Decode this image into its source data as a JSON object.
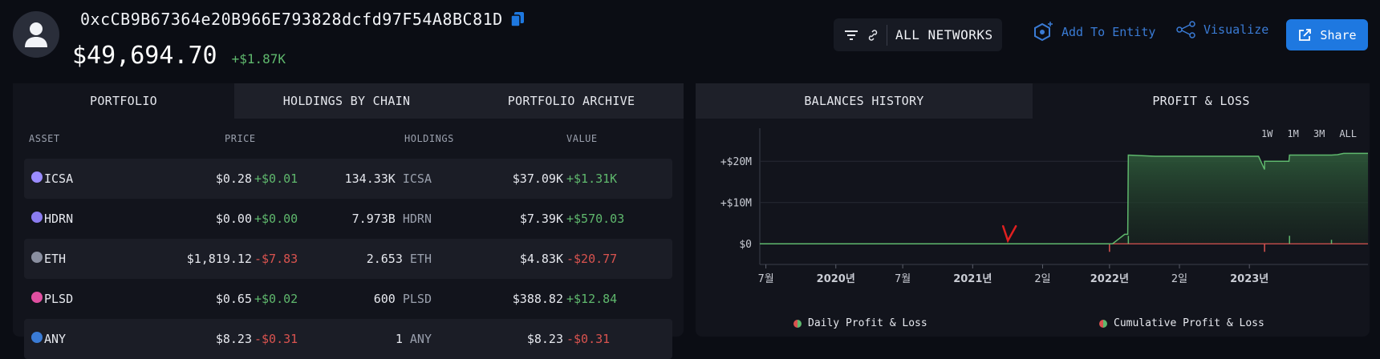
{
  "header": {
    "address": "0xcCB9B67364e20B966E793828dcfd97F54A8BC81D",
    "total_value": "$49,694.70",
    "total_delta": "+$1.87K",
    "network_label": "ALL NETWORKS",
    "add_entity_label": "Add To Entity",
    "visualize_label": "Visualize",
    "share_label": "Share"
  },
  "portfolio": {
    "tabs": [
      "PORTFOLIO",
      "HOLDINGS BY CHAIN",
      "PORTFOLIO ARCHIVE"
    ],
    "columns": [
      "ASSET",
      "PRICE",
      "HOLDINGS",
      "VALUE"
    ],
    "rows": [
      {
        "asset": "ICSA",
        "price": "$0.28",
        "price_delta": "+$0.01",
        "holdings": "134.33K",
        "unit": "ICSA",
        "value": "$37.09K",
        "value_delta": "+$1.31K",
        "price_sign": "pos",
        "value_sign": "pos",
        "color": "#9b8cff"
      },
      {
        "asset": "HDRN",
        "price": "$0.00",
        "price_delta": "+$0.00",
        "holdings": "7.973B",
        "unit": "HDRN",
        "value": "$7.39K",
        "value_delta": "+$570.03",
        "price_sign": "pos",
        "value_sign": "pos",
        "color": "#8b7cf0"
      },
      {
        "asset": "ETH",
        "price": "$1,819.12",
        "price_delta": "-$7.83",
        "holdings": "2.653",
        "unit": "ETH",
        "value": "$4.83K",
        "value_delta": "-$20.77",
        "price_sign": "neg",
        "value_sign": "neg",
        "color": "#8a8fa0"
      },
      {
        "asset": "PLSD",
        "price": "$0.65",
        "price_delta": "+$0.02",
        "holdings": "600",
        "unit": "PLSD",
        "value": "$388.82",
        "value_delta": "+$12.84",
        "price_sign": "pos",
        "value_sign": "pos",
        "color": "#e04fa0"
      },
      {
        "asset": "ANY",
        "price": "$8.23",
        "price_delta": "-$0.31",
        "holdings": "1",
        "unit": "ANY",
        "value": "$8.23",
        "value_delta": "-$0.31",
        "price_sign": "neg",
        "value_sign": "neg",
        "color": "#3a7bd5"
      }
    ]
  },
  "history": {
    "tabs": [
      "BALANCES HISTORY",
      "PROFIT & LOSS"
    ],
    "ranges": [
      "1W",
      "1M",
      "3M",
      "ALL"
    ]
  },
  "chart_data": {
    "type": "area",
    "title": "",
    "y_ticks": [
      "+$20M",
      "+$10M",
      "$0"
    ],
    "x_ticks": [
      "7월",
      "2020년",
      "7월",
      "2021년",
      "2일",
      "2022년",
      "2일",
      "2023년"
    ],
    "ylim": [
      -5000000,
      28000000
    ],
    "series": [
      {
        "name": "Daily Profit & Loss",
        "color": "#d9534f"
      },
      {
        "name": "Cumulative Profit & Loss",
        "color": "#5fb86d",
        "x": [
          0,
          0.58,
          0.6,
          0.605,
          0.606,
          0.65,
          0.66,
          0.82,
          0.83,
          0.83,
          0.87,
          0.871,
          0.94,
          0.95,
          0.96,
          1.0
        ],
        "y": [
          0,
          0,
          2300000,
          2300000,
          21500000,
          21200000,
          21200000,
          21200000,
          18000000,
          20000000,
          20000000,
          21500000,
          21500000,
          21600000,
          21900000,
          21900000
        ]
      }
    ],
    "legend_position": "bottom"
  }
}
